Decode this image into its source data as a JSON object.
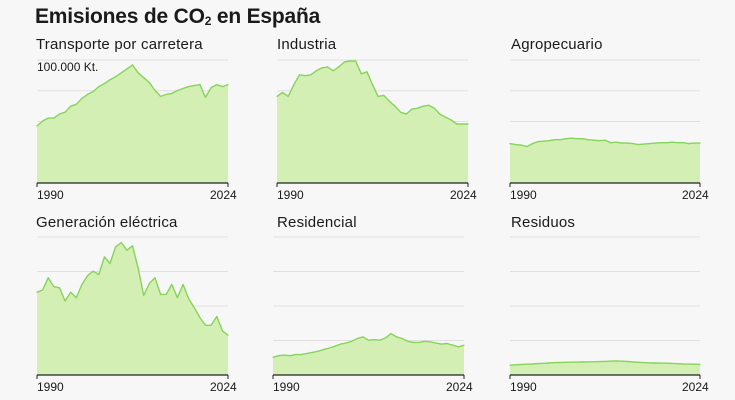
{
  "title": {
    "main": "Emisiones de CO",
    "sub": "2",
    "tail": " en España"
  },
  "ylabel": "100.000 Kt.",
  "colors": {
    "fill": "#d4efb4",
    "line": "#86d45a",
    "grid": "#e0e0e0",
    "axis": "#222222",
    "background": "#f7f7f7"
  },
  "chart_data": [
    {
      "type": "area",
      "title": "Transporte por carretera",
      "x_start": 1990,
      "x_end": 2024,
      "xticks": [
        "1990",
        "2024"
      ],
      "ylim": [
        0,
        125000
      ],
      "values": [
        58000,
        63000,
        66000,
        66000,
        70000,
        72000,
        78000,
        80000,
        86000,
        90000,
        93000,
        98000,
        101000,
        105000,
        108000,
        112000,
        116000,
        120000,
        112000,
        107000,
        102000,
        94000,
        88000,
        90000,
        91000,
        94000,
        96000,
        98000,
        99000,
        100000,
        87000,
        97000,
        100000,
        98000,
        100000
      ]
    },
    {
      "type": "area",
      "title": "Industria",
      "x_start": 1990,
      "x_end": 2024,
      "xticks": [
        "1990",
        "2024"
      ],
      "ylim": [
        0,
        125000
      ],
      "values": [
        88000,
        92000,
        88000,
        100000,
        110000,
        109000,
        110000,
        114000,
        117000,
        118000,
        114000,
        118000,
        123000,
        124000,
        124000,
        111000,
        113000,
        100000,
        88000,
        89000,
        83000,
        78000,
        72000,
        70000,
        75000,
        76000,
        78000,
        79000,
        76000,
        70000,
        67000,
        64000,
        60000,
        60000,
        60000
      ]
    },
    {
      "type": "area",
      "title": "Agropecuario",
      "x_start": 1990,
      "x_end": 2024,
      "xticks": [
        "1990",
        "2024"
      ],
      "ylim": [
        0,
        125000
      ],
      "values": [
        40000,
        39000,
        38500,
        37000,
        40000,
        42000,
        42500,
        43000,
        44000,
        44000,
        45000,
        45500,
        45000,
        45000,
        44000,
        43500,
        43000,
        43500,
        41000,
        41500,
        40500,
        40500,
        40000,
        39000,
        39500,
        40000,
        40500,
        41000,
        41000,
        41500,
        41000,
        41000,
        40000,
        40500,
        40500
      ]
    },
    {
      "type": "area",
      "title": "Generación eléctrica",
      "x_start": 1990,
      "x_end": 2024,
      "xticks": [
        "1990",
        "2024"
      ],
      "ylim": [
        0,
        125000
      ],
      "values": [
        75000,
        77000,
        88000,
        80000,
        79000,
        67000,
        75000,
        70000,
        82000,
        90000,
        94000,
        91000,
        107000,
        101000,
        116000,
        120000,
        113000,
        117000,
        97000,
        72000,
        83000,
        88000,
        73000,
        73000,
        82000,
        70000,
        82000,
        69000,
        61000,
        52000,
        45000,
        45000,
        53000,
        40000,
        36000
      ]
    },
    {
      "type": "area",
      "title": "Residencial",
      "x_start": 1990,
      "x_end": 2024,
      "xticks": [
        "1990",
        "2024"
      ],
      "ylim": [
        0,
        125000
      ],
      "values": [
        16000,
        17500,
        18000,
        17500,
        18500,
        18500,
        19500,
        20500,
        21500,
        23000,
        24500,
        26000,
        28000,
        29000,
        30500,
        33000,
        34500,
        31500,
        32000,
        31500,
        33500,
        37500,
        34500,
        33000,
        30500,
        29500,
        29500,
        30500,
        30000,
        29000,
        28000,
        28500,
        27000,
        25500,
        27000
      ]
    },
    {
      "type": "area",
      "title": "Residuos",
      "x_start": 1990,
      "x_end": 2024,
      "xticks": [
        "1990",
        "2024"
      ],
      "ylim": [
        0,
        125000
      ],
      "values": [
        9000,
        9200,
        9500,
        9800,
        10000,
        10300,
        10600,
        10900,
        11200,
        11300,
        11500,
        11600,
        11700,
        11800,
        11900,
        12000,
        12100,
        12300,
        12600,
        12800,
        12500,
        12200,
        11800,
        11500,
        11200,
        11000,
        10900,
        10800,
        10700,
        10500,
        10200,
        10000,
        9900,
        9800,
        9700
      ]
    }
  ]
}
